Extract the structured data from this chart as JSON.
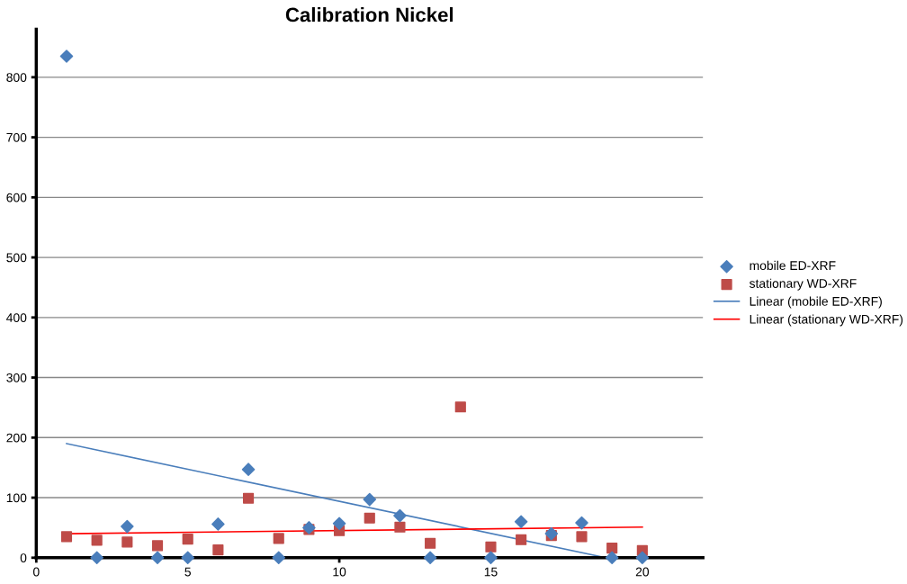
{
  "chart_data": {
    "type": "scatter",
    "title": "Calibration Nickel",
    "x": [
      1,
      2,
      3,
      4,
      5,
      6,
      7,
      8,
      9,
      10,
      11,
      12,
      13,
      14,
      15,
      16,
      17,
      18,
      19,
      20
    ],
    "series": [
      {
        "name": "mobile ED-XRF",
        "marker": "diamond",
        "color": "#4a7ebb",
        "values": [
          835,
          0,
          52,
          0,
          0,
          56,
          147,
          0,
          50,
          57,
          97,
          70,
          0,
          null,
          0,
          60,
          40,
          58,
          0,
          0
        ]
      },
      {
        "name": "stationary WD-XRF",
        "marker": "square",
        "color": "#be4b48",
        "values": [
          35,
          29,
          26,
          20,
          31,
          13,
          99,
          32,
          47,
          45,
          66,
          51,
          24,
          251,
          18,
          30,
          37,
          35,
          16,
          12
        ]
      },
      {
        "name": "Linear (mobile ED-XRF)",
        "type": "line",
        "color": "#4a7ebb",
        "x": [
          1,
          18.8
        ],
        "values": [
          190,
          0
        ]
      },
      {
        "name": "Linear (stationary WD-XRF)",
        "type": "line",
        "color": "#ff0000",
        "x": [
          1,
          20
        ],
        "values": [
          40,
          51
        ]
      }
    ],
    "xlim": [
      0,
      22
    ],
    "xticks": [
      0,
      5,
      10,
      15,
      20
    ],
    "ylim": [
      0,
      880
    ],
    "yticks": [
      0,
      100,
      200,
      300,
      400,
      500,
      600,
      700,
      800
    ],
    "grid": "y",
    "legend": "right"
  }
}
